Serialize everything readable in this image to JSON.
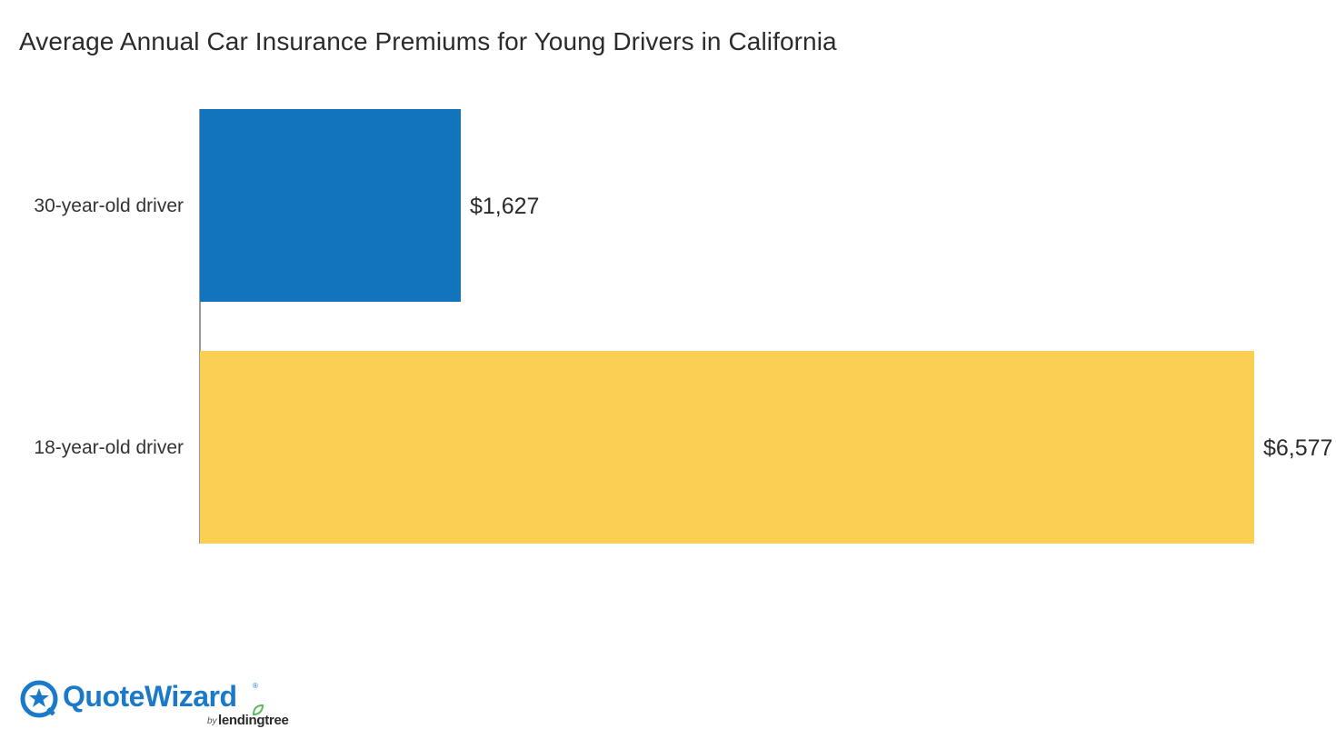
{
  "chart_data": {
    "type": "bar",
    "orientation": "horizontal",
    "title": "Average Annual Car Insurance Premiums for Young Drivers in California",
    "xlabel": "",
    "ylabel": "",
    "categories": [
      "30-year-old driver",
      "18-year-old driver"
    ],
    "values": [
      1627,
      6577
    ],
    "value_labels": [
      "$1,627",
      "$6,577"
    ],
    "colors": [
      "#1174bd",
      "#f9cf54"
    ],
    "xlim": [
      0,
      6577
    ],
    "grid": false,
    "legend": "none"
  },
  "branding": {
    "logo_name": "QuoteWizard",
    "logo_by": "by",
    "logo_sub": "lendingtree",
    "logo_color": "#1a7ac9",
    "leaf_color": "#5cb85c"
  }
}
